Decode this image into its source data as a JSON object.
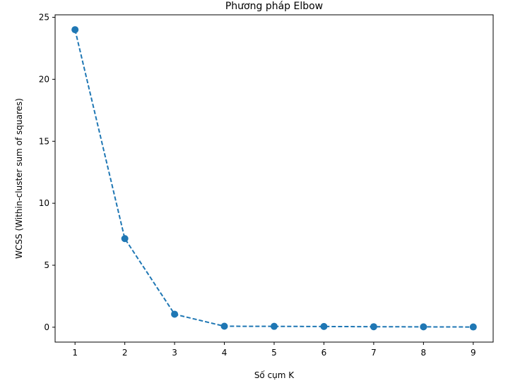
{
  "chart_data": {
    "type": "line",
    "title": "Phương pháp Elbow",
    "xlabel": "Số cụm K",
    "ylabel": "WCSS (Within-cluster sum of squares)",
    "x": [
      1,
      2,
      3,
      4,
      5,
      6,
      7,
      8,
      9
    ],
    "series": [
      {
        "values": [
          24.0,
          7.15,
          1.05,
          0.08,
          0.07,
          0.06,
          0.04,
          0.03,
          0.02
        ]
      }
    ],
    "xlim": [
      0.6,
      9.4
    ],
    "ylim": [
      -1.2,
      25.2
    ],
    "xticks": [
      1,
      2,
      3,
      4,
      5,
      6,
      7,
      8,
      9
    ],
    "yticks": [
      0,
      5,
      10,
      15,
      20,
      25
    ],
    "line_style": "dashed",
    "marker": "circle",
    "grid": false,
    "colors": {
      "series": "#1f77b4",
      "axes": "#000000",
      "background": "#ffffff"
    }
  }
}
